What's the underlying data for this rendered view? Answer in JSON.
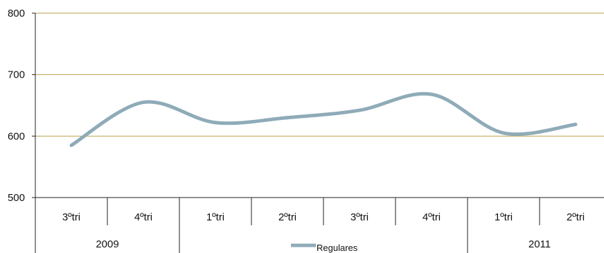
{
  "chart_data": {
    "type": "line",
    "title": "",
    "xlabel": "",
    "ylabel": "",
    "ylim": [
      500,
      800
    ],
    "yticks": [
      500,
      600,
      700,
      800
    ],
    "grid": true,
    "legend_position": "bottom",
    "categories": [
      "3ºtri",
      "4ºtri",
      "1ºtri",
      "2ºtri",
      "3ºtri",
      "4ºtri",
      "1ºtri",
      "2ºtri"
    ],
    "year_groups": [
      {
        "label": "2009",
        "span": 2
      },
      {
        "label": "",
        "span": 4
      },
      {
        "label": "2011",
        "span": 2
      }
    ],
    "series": [
      {
        "name": "Regulares",
        "values": [
          585,
          655,
          622,
          630,
          642,
          668,
          605,
          619
        ]
      }
    ],
    "colors": {
      "series": "#8fabb8",
      "gridline": "#b8a04a",
      "axis": "#222222",
      "text": "#111111"
    }
  }
}
